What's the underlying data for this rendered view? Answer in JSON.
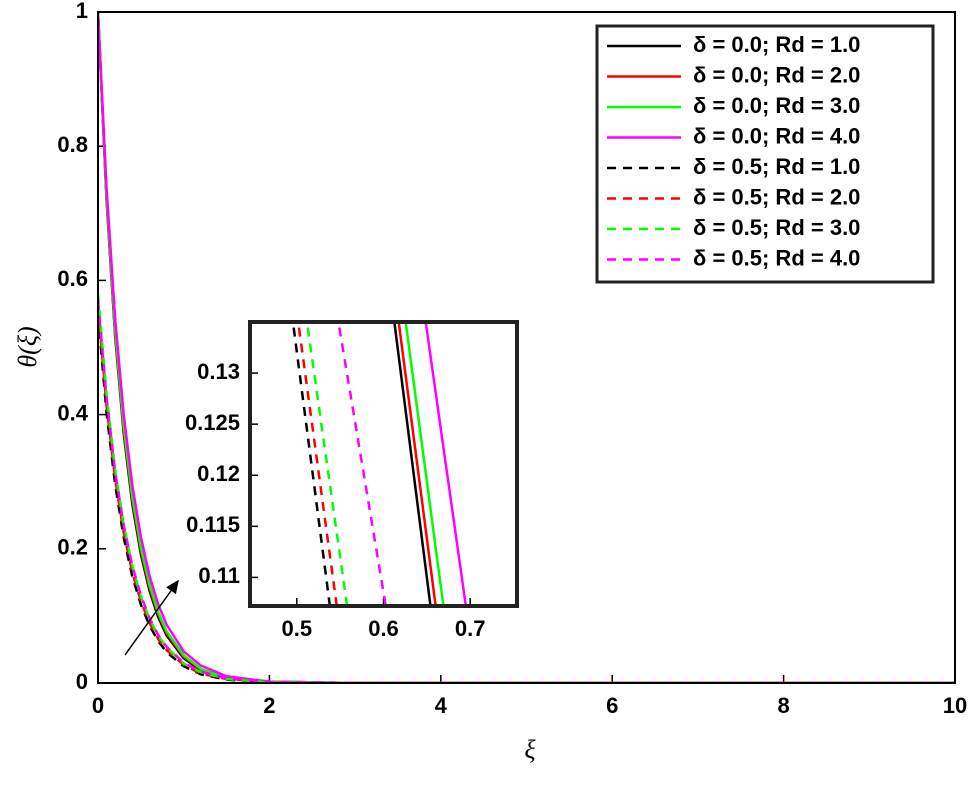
{
  "chart_data": [
    {
      "type": "line",
      "xlabel": "ξ",
      "ylabel": "θ(ξ)",
      "legend": "upper right",
      "xlim": [
        0,
        10
      ],
      "ylim": [
        0,
        1
      ],
      "xticks": [
        0,
        2,
        4,
        6,
        8,
        10
      ],
      "yticks": [
        0,
        0.2,
        0.4,
        0.6,
        0.8,
        1
      ],
      "x": [
        0,
        0.1,
        0.2,
        0.3,
        0.4,
        0.5,
        0.6,
        0.7,
        0.8,
        1,
        1.2,
        1.5,
        2,
        3,
        4,
        6,
        8,
        10
      ],
      "series": [
        {
          "name": "δ = 0.0; Rd = 1.0",
          "color": "#000000",
          "linestyle": "solid",
          "values": [
            1,
            0.719,
            0.517,
            0.372,
            0.267,
            0.192,
            0.138,
            0.099,
            0.071,
            0.037,
            0.019,
            0.007,
            0.001,
            0,
            0,
            0,
            0,
            0
          ]
        },
        {
          "name": "δ = 0.0; Rd = 2.0",
          "color": "#ff0000",
          "linestyle": "solid",
          "values": [
            1,
            0.723,
            0.522,
            0.377,
            0.273,
            0.197,
            0.142,
            0.103,
            0.074,
            0.039,
            0.02,
            0.008,
            0.002,
            0,
            0,
            0,
            0,
            0
          ]
        },
        {
          "name": "δ = 0.0; Rd = 3.0",
          "color": "#00ff00",
          "linestyle": "solid",
          "values": [
            1,
            0.726,
            0.527,
            0.383,
            0.278,
            0.202,
            0.147,
            0.106,
            0.077,
            0.041,
            0.021,
            0.008,
            0.002,
            0,
            0,
            0,
            0,
            0
          ]
        },
        {
          "name": "δ = 0.0; Rd = 4.0",
          "color": "#ff00ff",
          "linestyle": "solid",
          "values": [
            1,
            0.737,
            0.543,
            0.4,
            0.295,
            0.218,
            0.16,
            0.118,
            0.087,
            0.047,
            0.026,
            0.01,
            0.002,
            0,
            0,
            0,
            0,
            0
          ]
        },
        {
          "name": "δ = 0.5; Rd = 1.0",
          "color": "#000000",
          "linestyle": "dashed",
          "values": [
            0.55,
            0.402,
            0.296,
            0.217,
            0.159,
            0.117,
            0.086,
            0.063,
            0.046,
            0.025,
            0.013,
            0.005,
            0.001,
            0,
            0,
            0,
            0,
            0
          ]
        },
        {
          "name": "δ = 0.5; Rd = 2.0",
          "color": "#ff0000",
          "linestyle": "dashed",
          "values": [
            0.56,
            0.413,
            0.304,
            0.224,
            0.165,
            0.122,
            0.09,
            0.066,
            0.049,
            0.027,
            0.014,
            0.006,
            0.001,
            0,
            0,
            0,
            0,
            0
          ]
        },
        {
          "name": "δ = 0.5; Rd = 3.0",
          "color": "#00ff00",
          "linestyle": "dashed",
          "values": [
            0.58,
            0.43,
            0.318,
            0.236,
            0.175,
            0.129,
            0.096,
            0.071,
            0.053,
            0.029,
            0.016,
            0.006,
            0.001,
            0,
            0,
            0,
            0,
            0
          ]
        },
        {
          "name": "δ = 0.5; Rd = 4.0",
          "color": "#ff00ff",
          "linestyle": "dashed",
          "values": [
            0.57,
            0.425,
            0.315,
            0.235,
            0.175,
            0.131,
            0.097,
            0.072,
            0.054,
            0.03,
            0.017,
            0.007,
            0.002,
            0,
            0,
            0,
            0,
            0
          ]
        }
      ]
    },
    {
      "type": "line",
      "xlim": [
        0.446,
        0.754
      ],
      "ylim": [
        0.1072,
        0.135
      ],
      "xticks": [
        0.5,
        0.6,
        0.7
      ],
      "yticks": [
        0.11,
        0.115,
        0.12,
        0.125,
        0.13
      ],
      "series": [
        {
          "color": "#000000",
          "linestyle": "solid",
          "x": [
            0.611,
            0.656
          ],
          "values": [
            0.136,
            0.106
          ]
        },
        {
          "color": "#ff0000",
          "linestyle": "solid",
          "x": [
            0.616,
            0.662
          ],
          "values": [
            0.136,
            0.106
          ]
        },
        {
          "color": "#00ff00",
          "linestyle": "solid",
          "x": [
            0.624,
            0.671
          ],
          "values": [
            0.136,
            0.106
          ]
        },
        {
          "color": "#ff00ff",
          "linestyle": "solid",
          "x": [
            0.647,
            0.697
          ],
          "values": [
            0.136,
            0.106
          ]
        },
        {
          "color": "#000000",
          "linestyle": "dashed",
          "x": [
            0.494,
            0.54
          ],
          "values": [
            0.136,
            0.106
          ]
        },
        {
          "color": "#ff0000",
          "linestyle": "dashed",
          "x": [
            0.5,
            0.548
          ],
          "values": [
            0.136,
            0.106
          ]
        },
        {
          "color": "#00ff00",
          "linestyle": "dashed",
          "x": [
            0.51,
            0.56
          ],
          "values": [
            0.136,
            0.106
          ]
        },
        {
          "color": "#ff00ff",
          "linestyle": "dashed",
          "x": [
            0.546,
            0.605
          ],
          "values": [
            0.136,
            0.106
          ]
        }
      ]
    }
  ]
}
